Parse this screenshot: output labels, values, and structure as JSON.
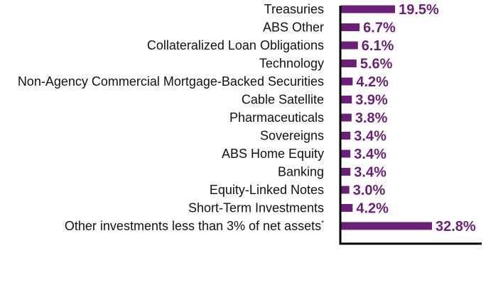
{
  "chart_data": {
    "type": "bar",
    "orientation": "horizontal",
    "title": "",
    "xlabel": "",
    "ylabel": "",
    "grid": false,
    "xlim": [
      0,
      35
    ],
    "bar_color": "#6b1f78",
    "label_color": "#6b1f78",
    "axis_color": "#000000",
    "categories": [
      "Treasuries",
      "ABS Other",
      "Collateralized Loan Obligations",
      "Technology",
      "Non-Agency Commercial Mortgage-Backed Securities",
      "Cable Satellite",
      "Pharmaceuticals",
      "Sovereigns",
      "ABS Home Equity",
      "Banking",
      "Equity-Linked Notes",
      "Short-Term Investments",
      "Other investments less than 3% of net assets"
    ],
    "footnote_marks": [
      "",
      "",
      "",
      "",
      "",
      "",
      "",
      "",
      "",
      "",
      "",
      "",
      "*"
    ],
    "values": [
      19.5,
      6.7,
      6.1,
      5.6,
      4.2,
      3.9,
      3.8,
      3.4,
      3.4,
      3.4,
      3.0,
      4.2,
      32.8
    ],
    "value_labels": [
      "19.5%",
      "6.7%",
      "6.1%",
      "5.6%",
      "4.2%",
      "3.9%",
      "3.8%",
      "3.4%",
      "3.4%",
      "3.4%",
      "3.0%",
      "4.2%",
      "32.8%"
    ]
  }
}
